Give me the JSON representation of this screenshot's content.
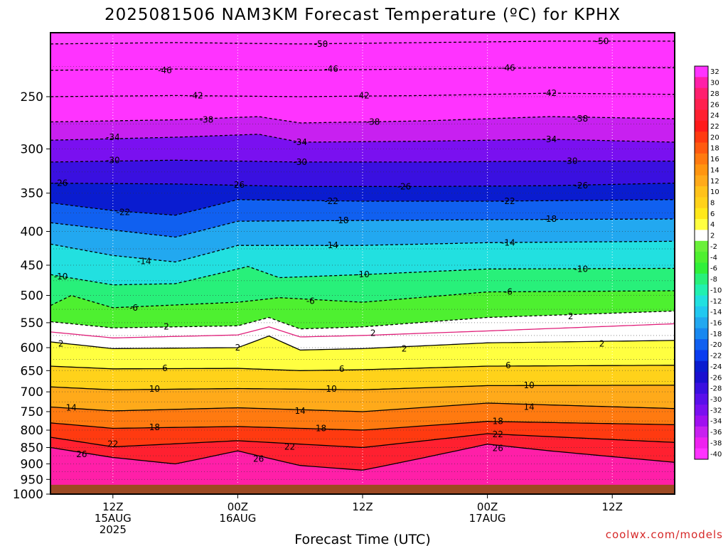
{
  "title": "2025081506 NAM3KM Forecast Temperature (ºC) for KPHX",
  "xlabel": "Forecast Time (UTC)",
  "credit": "coolwx.com/models",
  "chart_data": {
    "type": "heatmap",
    "title": "2025081506 NAM3KM Forecast Temperature (ºC) for KPHX",
    "xlabel": "Forecast Time (UTC)",
    "ylabel": "",
    "x_axis": {
      "range_hours": [
        6,
        66
      ],
      "ticks": [
        {
          "hour": 12,
          "lines": [
            "12Z",
            "15AUG",
            "2025"
          ]
        },
        {
          "hour": 24,
          "lines": [
            "00Z",
            "16AUG"
          ]
        },
        {
          "hour": 36,
          "lines": [
            "12Z"
          ]
        },
        {
          "hour": 48,
          "lines": [
            "00Z",
            "17AUG"
          ]
        },
        {
          "hour": 60,
          "lines": [
            "12Z"
          ]
        }
      ]
    },
    "y_axis": {
      "scale": "log",
      "reversed": true,
      "range_hpa": [
        200,
        1000
      ],
      "ticks": [
        250,
        300,
        350,
        400,
        450,
        500,
        550,
        600,
        650,
        700,
        750,
        800,
        850,
        900,
        950,
        1000
      ]
    },
    "surface_pressure_hpa": 968,
    "colorbar": {
      "ticks": [
        32,
        30,
        28,
        26,
        24,
        22,
        20,
        18,
        16,
        14,
        12,
        10,
        8,
        6,
        4,
        2,
        -2,
        -4,
        -6,
        -8,
        -10,
        -12,
        -14,
        -16,
        -18,
        -20,
        -22,
        -24,
        -26,
        -28,
        -30,
        -32,
        -34,
        -36,
        -38,
        -40
      ],
      "colors": [
        "#ff33ff",
        "#ff1fa8",
        "#ff1f6e",
        "#ff2050",
        "#ff2030",
        "#ff1a1a",
        "#ff3a10",
        "#ff5a10",
        "#ff7a10",
        "#ff9510",
        "#ffaa1a",
        "#ffc21a",
        "#ffd21a",
        "#ffe81a",
        "#ffff40",
        "#ffffff",
        "#6af03a",
        "#4ef030",
        "#30f03a",
        "#28f07a",
        "#22f0b0",
        "#22e0e0",
        "#22c8f0",
        "#22a8f0",
        "#1888f0",
        "#1060f0",
        "#0a3cf0",
        "#0a1cd0",
        "#1a10d0",
        "#3a10e0",
        "#5a10ea",
        "#7a10f0",
        "#a010f0",
        "#c820f0",
        "#ee22f0",
        "#ff33ff"
      ]
    },
    "series": [
      {
        "value": -50,
        "type": "dashed",
        "x": [
          6,
          18,
          30,
          42,
          54,
          66
        ],
        "y": [
          208,
          207,
          208,
          207,
          206,
          206
        ]
      },
      {
        "value": -46,
        "type": "dashed",
        "x": [
          6,
          18,
          30,
          42,
          54,
          66
        ],
        "y": [
          228,
          227,
          228,
          227,
          226,
          226
        ]
      },
      {
        "value": -42,
        "type": "dashed",
        "x": [
          6,
          18,
          30,
          42,
          54,
          66
        ],
        "y": [
          250,
          249,
          250,
          249,
          247,
          248
        ]
      },
      {
        "value": -38,
        "type": "dashed",
        "x": [
          6,
          18,
          26,
          30,
          42,
          54,
          66
        ],
        "y": [
          273,
          271,
          268,
          274,
          272,
          268,
          270
        ]
      },
      {
        "value": -34,
        "type": "dashed",
        "x": [
          6,
          18,
          26,
          30,
          42,
          54,
          66
        ],
        "y": [
          291,
          288,
          285,
          293,
          292,
          290,
          293
        ]
      },
      {
        "value": -30,
        "type": "dashed",
        "x": [
          6,
          18,
          30,
          42,
          54,
          66
        ],
        "y": [
          314,
          312,
          314,
          314,
          313,
          313
        ]
      },
      {
        "value": -26,
        "type": "dashed",
        "x": [
          6,
          18,
          30,
          42,
          54,
          66
        ],
        "y": [
          338,
          339,
          342,
          342,
          341,
          338
        ]
      },
      {
        "value": -22,
        "type": "dashed",
        "x": [
          6,
          12,
          18,
          24,
          36,
          48,
          66
        ],
        "y": [
          362,
          372,
          378,
          358,
          360,
          360,
          358
        ]
      },
      {
        "value": -18,
        "type": "dashed",
        "x": [
          6,
          12,
          18,
          24,
          36,
          48,
          66
        ],
        "y": [
          388,
          398,
          408,
          386,
          385,
          384,
          383
        ]
      },
      {
        "value": -14,
        "type": "dashed",
        "x": [
          6,
          12,
          18,
          24,
          36,
          48,
          66
        ],
        "y": [
          418,
          435,
          445,
          420,
          420,
          416,
          414
        ]
      },
      {
        "value": -10,
        "type": "dashed",
        "x": [
          6,
          12,
          18,
          25,
          28,
          36,
          48,
          66
        ],
        "y": [
          465,
          482,
          480,
          452,
          470,
          465,
          456,
          455
        ]
      },
      {
        "value": -6,
        "type": "dashed",
        "x": [
          6,
          8,
          12,
          24,
          28,
          36,
          48,
          66
        ],
        "y": [
          518,
          500,
          522,
          512,
          504,
          512,
          494,
          492
        ]
      },
      {
        "value": -2,
        "type": "dashed",
        "x": [
          6,
          12,
          24,
          27,
          30,
          36,
          48,
          66
        ],
        "y": [
          548,
          560,
          556,
          540,
          562,
          558,
          540,
          528
        ]
      },
      {
        "value": 0,
        "type": "magenta",
        "x": [
          6,
          12,
          24,
          27,
          30,
          36,
          48,
          66
        ],
        "y": [
          568,
          580,
          574,
          558,
          578,
          575,
          566,
          552
        ]
      },
      {
        "value": 2,
        "type": "solid",
        "x": [
          6,
          12,
          24,
          27,
          30,
          36,
          48,
          66
        ],
        "y": [
          588,
          602,
          600,
          576,
          605,
          602,
          590,
          585
        ]
      },
      {
        "value": 6,
        "type": "solid",
        "x": [
          6,
          12,
          24,
          30,
          36,
          48,
          66
        ],
        "y": [
          640,
          646,
          645,
          650,
          648,
          640,
          638
        ]
      },
      {
        "value": 10,
        "type": "solid",
        "x": [
          6,
          12,
          24,
          36,
          48,
          66
        ],
        "y": [
          688,
          695,
          692,
          695,
          685,
          684
        ]
      },
      {
        "value": 14,
        "type": "solid",
        "x": [
          6,
          12,
          24,
          36,
          48,
          66
        ],
        "y": [
          738,
          748,
          740,
          750,
          728,
          742
        ]
      },
      {
        "value": 18,
        "type": "solid",
        "x": [
          6,
          12,
          24,
          36,
          48,
          66
        ],
        "y": [
          780,
          795,
          790,
          800,
          776,
          785
        ]
      },
      {
        "value": 22,
        "type": "solid",
        "x": [
          6,
          12,
          24,
          36,
          48,
          66
        ],
        "y": [
          820,
          848,
          830,
          850,
          810,
          835
        ]
      },
      {
        "value": 26,
        "type": "solid",
        "x": [
          6,
          12,
          18,
          24,
          30,
          36,
          48,
          54,
          66
        ],
        "y": [
          850,
          880,
          900,
          860,
          905,
          920,
          840,
          860,
          895
        ]
      }
    ],
    "contour_labels": [
      {
        "text": "-50",
        "x": 32,
        "p": 208
      },
      {
        "text": "-50",
        "x": 59,
        "p": 206
      },
      {
        "text": "-46",
        "x": 17,
        "p": 228
      },
      {
        "text": "-46",
        "x": 33,
        "p": 227
      },
      {
        "text": "-46",
        "x": 50,
        "p": 226
      },
      {
        "text": "-42",
        "x": 20,
        "p": 249
      },
      {
        "text": "-42",
        "x": 36,
        "p": 249
      },
      {
        "text": "-42",
        "x": 54,
        "p": 247
      },
      {
        "text": "-38",
        "x": 21,
        "p": 271
      },
      {
        "text": "-38",
        "x": 37,
        "p": 273
      },
      {
        "text": "-38",
        "x": 57,
        "p": 270
      },
      {
        "text": "-34",
        "x": 12,
        "p": 288
      },
      {
        "text": "-34",
        "x": 30,
        "p": 293
      },
      {
        "text": "-34",
        "x": 54,
        "p": 290
      },
      {
        "text": "-30",
        "x": 12,
        "p": 312
      },
      {
        "text": "-30",
        "x": 30,
        "p": 314
      },
      {
        "text": "-30",
        "x": 56,
        "p": 313
      },
      {
        "text": "-26",
        "x": 7,
        "p": 338
      },
      {
        "text": "-26",
        "x": 24,
        "p": 340
      },
      {
        "text": "-26",
        "x": 40,
        "p": 342
      },
      {
        "text": "-26",
        "x": 57,
        "p": 341
      },
      {
        "text": "-22",
        "x": 13,
        "p": 374
      },
      {
        "text": "-22",
        "x": 33,
        "p": 360
      },
      {
        "text": "-22",
        "x": 50,
        "p": 360
      },
      {
        "text": "-18",
        "x": 34,
        "p": 385
      },
      {
        "text": "-18",
        "x": 54,
        "p": 383
      },
      {
        "text": "-14",
        "x": 15,
        "p": 444
      },
      {
        "text": "-14",
        "x": 33,
        "p": 420
      },
      {
        "text": "-14",
        "x": 50,
        "p": 416
      },
      {
        "text": "-10",
        "x": 7,
        "p": 468
      },
      {
        "text": "-10",
        "x": 36,
        "p": 465
      },
      {
        "text": "-10",
        "x": 57,
        "p": 456
      },
      {
        "text": "-6",
        "x": 14,
        "p": 522
      },
      {
        "text": "-6",
        "x": 31,
        "p": 510
      },
      {
        "text": "-6",
        "x": 50,
        "p": 494
      },
      {
        "text": "-2",
        "x": 17,
        "p": 558
      },
      {
        "text": "2",
        "x": 37,
        "p": 570
      },
      {
        "text": "2",
        "x": 56,
        "p": 538
      },
      {
        "text": "2",
        "x": 7,
        "p": 592
      },
      {
        "text": "2",
        "x": 24,
        "p": 600
      },
      {
        "text": "2",
        "x": 40,
        "p": 602
      },
      {
        "text": "2",
        "x": 59,
        "p": 592
      },
      {
        "text": "6",
        "x": 17,
        "p": 645
      },
      {
        "text": "6",
        "x": 34,
        "p": 646
      },
      {
        "text": "6",
        "x": 50,
        "p": 638
      },
      {
        "text": "10",
        "x": 16,
        "p": 693
      },
      {
        "text": "10",
        "x": 33,
        "p": 693
      },
      {
        "text": "10",
        "x": 52,
        "p": 684
      },
      {
        "text": "14",
        "x": 8,
        "p": 740
      },
      {
        "text": "14",
        "x": 30,
        "p": 748
      },
      {
        "text": "14",
        "x": 52,
        "p": 738
      },
      {
        "text": "18",
        "x": 16,
        "p": 792
      },
      {
        "text": "18",
        "x": 32,
        "p": 795
      },
      {
        "text": "18",
        "x": 49,
        "p": 776
      },
      {
        "text": "22",
        "x": 12,
        "p": 840
      },
      {
        "text": "22",
        "x": 29,
        "p": 848
      },
      {
        "text": "22",
        "x": 49,
        "p": 812
      },
      {
        "text": "26",
        "x": 9,
        "p": 870
      },
      {
        "text": "26",
        "x": 26,
        "p": 885
      },
      {
        "text": "26",
        "x": 49,
        "p": 852
      }
    ]
  }
}
